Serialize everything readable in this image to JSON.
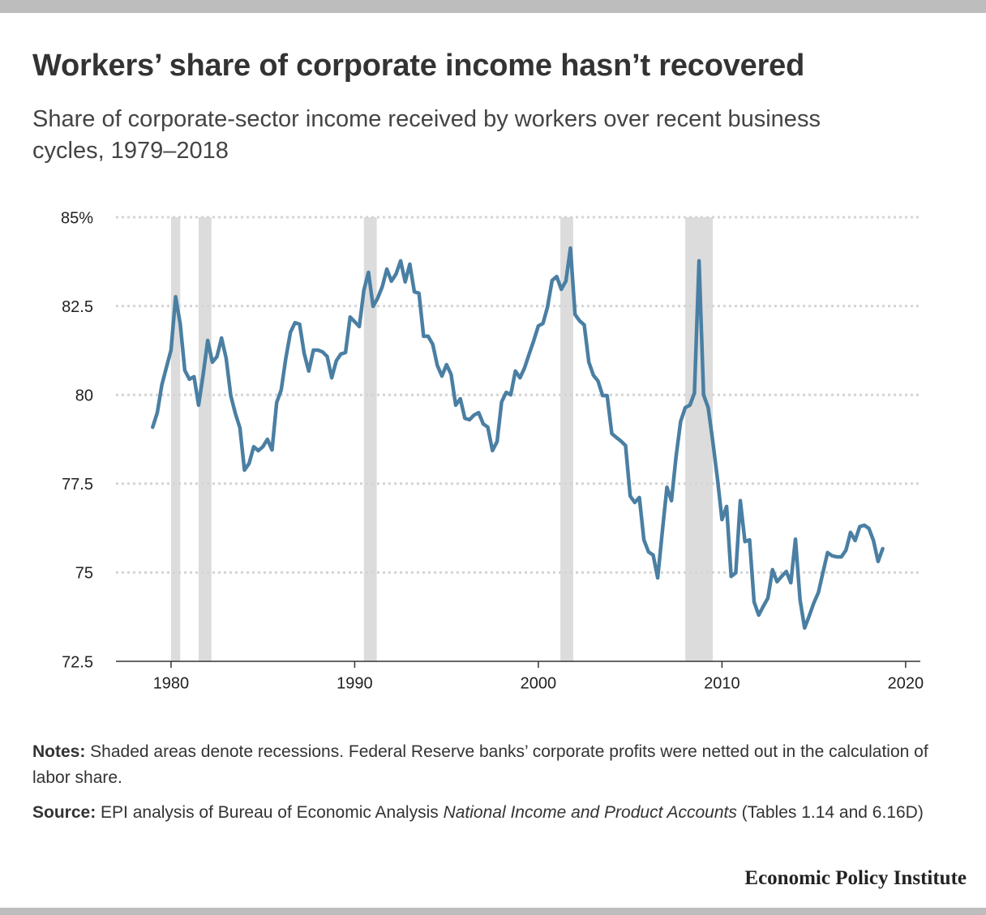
{
  "chart_data": {
    "type": "line",
    "title": "Workers’ share of corporate income hasn’t recovered",
    "subtitle": "Share of corporate-sector income received by workers over recent business cycles, 1979–2018",
    "x": [
      1979,
      1979.25,
      1979.5,
      1979.75,
      1980,
      1980.25,
      1980.5,
      1980.75,
      1981,
      1981.25,
      1981.5,
      1981.75,
      1982,
      1982.25,
      1982.5,
      1982.75,
      1983,
      1983.25,
      1983.5,
      1983.75,
      1984,
      1984.25,
      1984.5,
      1984.75,
      1985,
      1985.25,
      1985.5,
      1985.75,
      1986,
      1986.25,
      1986.5,
      1986.75,
      1987,
      1987.25,
      1987.5,
      1987.75,
      1988,
      1988.25,
      1988.5,
      1988.75,
      1989,
      1989.25,
      1989.5,
      1989.75,
      1990,
      1990.25,
      1990.5,
      1990.75,
      1991,
      1991.25,
      1991.5,
      1991.75,
      1992,
      1992.25,
      1992.5,
      1992.75,
      1993,
      1993.25,
      1993.5,
      1993.75,
      1994,
      1994.25,
      1994.5,
      1994.75,
      1995,
      1995.25,
      1995.5,
      1995.75,
      1996,
      1996.25,
      1996.5,
      1996.75,
      1997,
      1997.25,
      1997.5,
      1997.75,
      1998,
      1998.25,
      1998.5,
      1998.75,
      1999,
      1999.25,
      1999.5,
      1999.75,
      2000,
      2000.25,
      2000.5,
      2000.75,
      2001,
      2001.25,
      2001.5,
      2001.75,
      2002,
      2002.25,
      2002.5,
      2002.75,
      2003,
      2003.25,
      2003.5,
      2003.75,
      2004,
      2004.25,
      2004.5,
      2004.75,
      2005,
      2005.25,
      2005.5,
      2005.75,
      2006,
      2006.25,
      2006.5,
      2006.75,
      2007,
      2007.25,
      2007.5,
      2007.75,
      2008,
      2008.25,
      2008.5,
      2008.75,
      2009,
      2009.25,
      2009.5,
      2009.75,
      2010,
      2010.25,
      2010.5,
      2010.75,
      2011,
      2011.25,
      2011.5,
      2011.75,
      2012,
      2012.25,
      2012.5,
      2012.75,
      2013,
      2013.25,
      2013.5,
      2013.75,
      2014,
      2014.25,
      2014.5,
      2014.75,
      2015,
      2015.25,
      2015.5,
      2015.75,
      2016,
      2016.25,
      2016.5,
      2016.75,
      2017,
      2017.25,
      2017.5,
      2017.75,
      2018,
      2018.25,
      2018.5,
      2018.75
    ],
    "values": [
      79.09,
      79.5,
      80.28,
      80.78,
      81.26,
      82.76,
      81.99,
      80.69,
      80.44,
      80.51,
      79.71,
      80.58,
      81.53,
      80.92,
      81.08,
      81.6,
      81.03,
      79.98,
      79.48,
      79.07,
      77.88,
      78.07,
      78.54,
      78.43,
      78.54,
      78.75,
      78.45,
      79.78,
      80.14,
      81.03,
      81.76,
      82.03,
      81.99,
      81.17,
      80.67,
      81.26,
      81.26,
      81.21,
      81.08,
      80.48,
      80.96,
      81.15,
      81.19,
      82.19,
      82.06,
      81.92,
      82.95,
      83.45,
      82.49,
      82.72,
      83.04,
      83.54,
      83.2,
      83.4,
      83.77,
      83.18,
      83.68,
      82.9,
      82.86,
      81.65,
      81.65,
      81.42,
      80.83,
      80.53,
      80.85,
      80.58,
      79.71,
      79.89,
      79.34,
      79.3,
      79.43,
      79.5,
      79.18,
      79.09,
      78.43,
      78.68,
      79.8,
      80.07,
      80.0,
      80.67,
      80.48,
      80.76,
      81.15,
      81.53,
      81.94,
      82.01,
      82.47,
      83.22,
      83.33,
      82.97,
      83.2,
      84.13,
      82.26,
      82.08,
      81.97,
      80.92,
      80.55,
      80.39,
      79.98,
      79.98,
      78.91,
      78.8,
      78.7,
      78.57,
      77.15,
      76.97,
      77.11,
      75.92,
      75.58,
      75.49,
      74.85,
      76.15,
      77.4,
      77.02,
      78.27,
      79.25,
      79.64,
      79.71,
      80.05,
      83.77,
      80.0,
      79.64,
      78.68,
      77.66,
      76.49,
      76.86,
      74.89,
      74.99,
      77.02,
      75.87,
      75.92,
      74.17,
      73.8,
      74.05,
      74.28,
      75.08,
      74.74,
      74.89,
      75.03,
      74.71,
      75.94,
      74.23,
      73.44,
      73.78,
      74.14,
      74.44,
      75.01,
      75.56,
      75.47,
      75.44,
      75.44,
      75.63,
      76.13,
      75.9,
      76.29,
      76.33,
      76.24,
      75.9,
      75.31,
      75.67
    ],
    "color": "#4a7fa3",
    "shaded_regions": [
      [
        1980,
        1980.5
      ],
      [
        1981.5,
        1982.2
      ],
      [
        1990.5,
        1991.2
      ],
      [
        2001.2,
        2001.9
      ],
      [
        2008,
        2009.5
      ]
    ],
    "shade_color": "#dcdcdc",
    "xlim": [
      1977,
      2020.8
    ],
    "xticks": [
      1980,
      1990,
      2000,
      2010,
      2020
    ],
    "ylim": [
      72.5,
      85
    ],
    "yticks": [
      72.5,
      75,
      77.5,
      80,
      82.5,
      {
        "value": 85,
        "label": "85%"
      }
    ],
    "grid": true,
    "notes": {
      "label": "Notes:",
      "text": " Shaded areas denote recessions. Federal Reserve banks’ corporate profits were netted out in the calculation of labor share."
    },
    "source": {
      "label": "Source:",
      "text": " EPI analysis of Bureau of Economic Analysis ",
      "italic": "National Income and Product Accounts",
      "text2": " (Tables 1.14 and 6.16D)"
    },
    "publisher": "Economic Policy Institute"
  }
}
